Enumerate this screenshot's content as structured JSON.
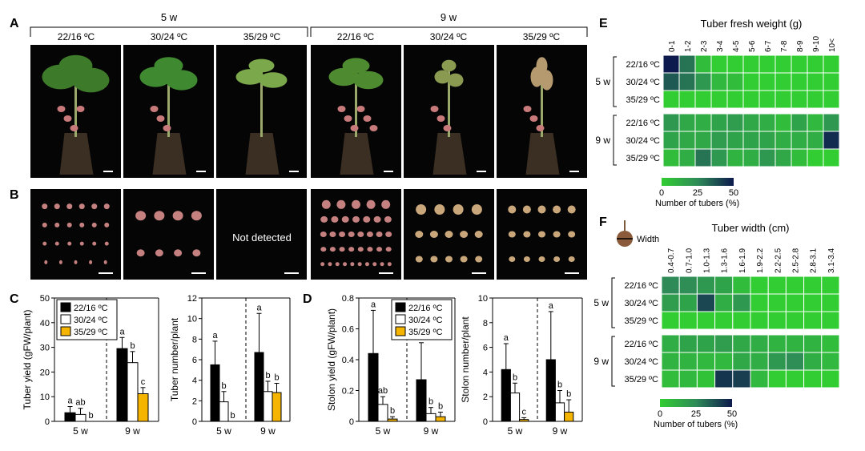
{
  "panel_labels": {
    "A": "A",
    "B": "B",
    "C": "C",
    "D": "D",
    "E": "E",
    "F": "F"
  },
  "groups": [
    {
      "label": "5 w",
      "temps": [
        "22/16 ºC",
        "30/24 ºC",
        "35/29 ºC"
      ]
    },
    {
      "label": "9 w",
      "temps": [
        "22/16 ºC",
        "30/24 ºC",
        "35/29 ºC"
      ]
    }
  ],
  "panel_b": {
    "not_detected": "Not detected"
  },
  "colors": {
    "black_bar": "#000000",
    "white_bar": "#ffffff",
    "yellow_bar": "#f5b400",
    "photo_bg": "#050505",
    "heat_low": "#32cd32",
    "heat_mid": "#2e8b57",
    "heat_high": "#0d1a4d"
  },
  "legend_temps": [
    "22/16 ºC",
    "30/24 ºC",
    "35/29 ºC"
  ],
  "chart_data": [
    {
      "id": "C-yield",
      "type": "bar",
      "ylabel": "Tuber yield (gFW/plant)",
      "ylim": [
        0,
        50
      ],
      "yticks": [
        0,
        10,
        20,
        30,
        40,
        50
      ],
      "categories": [
        "5 w",
        "9 w"
      ],
      "series": [
        {
          "name": "22/16 ºC",
          "values": [
            3.5,
            29.5
          ],
          "err": [
            2.5,
            4.5
          ],
          "letters": [
            "a",
            "a"
          ]
        },
        {
          "name": "30/24 ºC",
          "values": [
            2.8,
            23.8
          ],
          "err": [
            2.5,
            4.5
          ],
          "letters": [
            "ab",
            "b"
          ]
        },
        {
          "name": "35/29 ºC",
          "values": [
            0,
            11.2
          ],
          "err": [
            0,
            2.5
          ],
          "letters": [
            "b",
            "c"
          ]
        }
      ]
    },
    {
      "id": "C-number",
      "type": "bar",
      "ylabel": "Tuber number/plant",
      "ylim": [
        0,
        12
      ],
      "yticks": [
        0,
        2,
        4,
        6,
        8,
        10,
        12
      ],
      "categories": [
        "5 w",
        "9 w"
      ],
      "series": [
        {
          "name": "22/16 ºC",
          "values": [
            5.5,
            6.7
          ],
          "err": [
            2.3,
            3.8
          ],
          "letters": [
            "a",
            "a"
          ]
        },
        {
          "name": "30/24 ºC",
          "values": [
            1.9,
            2.9
          ],
          "err": [
            1.0,
            1.0
          ],
          "letters": [
            "b",
            "b"
          ]
        },
        {
          "name": "35/29 ºC",
          "values": [
            0,
            2.8
          ],
          "err": [
            0,
            0.9
          ],
          "letters": [
            "b",
            "b"
          ]
        }
      ]
    },
    {
      "id": "D-yield",
      "type": "bar",
      "ylabel": "Stolon yield (gFW/plant)",
      "ylim": [
        0,
        0.8
      ],
      "yticks": [
        0,
        0.2,
        0.4,
        0.6,
        0.8
      ],
      "categories": [
        "5 w",
        "9 w"
      ],
      "series": [
        {
          "name": "22/16 ºC",
          "values": [
            0.44,
            0.27
          ],
          "err": [
            0.28,
            0.24
          ],
          "letters": [
            "a",
            "a"
          ]
        },
        {
          "name": "30/24 ºC",
          "values": [
            0.11,
            0.05
          ],
          "err": [
            0.05,
            0.04
          ],
          "letters": [
            "ab",
            "b"
          ]
        },
        {
          "name": "35/29 ºC",
          "values": [
            0.015,
            0.03
          ],
          "err": [
            0.015,
            0.03
          ],
          "letters": [
            "b",
            "b"
          ]
        }
      ]
    },
    {
      "id": "D-number",
      "type": "bar",
      "ylabel": "Stolon number/plant",
      "ylim": [
        0,
        10
      ],
      "yticks": [
        0,
        2,
        4,
        6,
        8,
        10
      ],
      "categories": [
        "5 w",
        "9 w"
      ],
      "series": [
        {
          "name": "22/16 ºC",
          "values": [
            4.2,
            5.0
          ],
          "err": [
            2.1,
            3.9
          ],
          "letters": [
            "a",
            "a"
          ]
        },
        {
          "name": "30/24 ºC",
          "values": [
            2.3,
            1.5
          ],
          "err": [
            0.8,
            1.0
          ],
          "letters": [
            "b",
            "b"
          ]
        },
        {
          "name": "35/29 ºC",
          "values": [
            0.15,
            0.75
          ],
          "err": [
            0.15,
            1.0
          ],
          "letters": [
            "c",
            "b"
          ]
        }
      ]
    },
    {
      "id": "E",
      "type": "heatmap",
      "title": "Tuber fresh weight (g)",
      "columns": [
        "0-1",
        "1-2",
        "2-3",
        "3-4",
        "4-5",
        "5-6",
        "6-7",
        "7-8",
        "8-9",
        "9-10",
        "10<"
      ],
      "rows": [
        "22/16 ºC",
        "30/24 ºC",
        "35/29 ºC",
        "22/16 ºC",
        "30/24 ºC",
        "35/29 ºC"
      ],
      "row_groups": [
        "5 w",
        "9 w"
      ],
      "values": [
        [
          50,
          30,
          6,
          0,
          0,
          0,
          0,
          0,
          0,
          0,
          0
        ],
        [
          36,
          30,
          20,
          8,
          6,
          0,
          0,
          0,
          0,
          0,
          0
        ],
        [
          0,
          0,
          0,
          0,
          0,
          0,
          0,
          0,
          0,
          0,
          0
        ],
        [
          20,
          14,
          12,
          16,
          18,
          14,
          12,
          6,
          16,
          8,
          20
        ],
        [
          16,
          14,
          14,
          18,
          16,
          16,
          16,
          12,
          12,
          12,
          46
        ],
        [
          6,
          12,
          30,
          20,
          10,
          12,
          20,
          14,
          6,
          0,
          0
        ]
      ],
      "legend": {
        "ticks": [
          0,
          25,
          50
        ],
        "label": "Number of tubers (%)"
      }
    },
    {
      "id": "F",
      "type": "heatmap",
      "title": "Tuber width (cm)",
      "icon_label": "Width",
      "columns": [
        "0.4-0.7",
        "0.7-1.0",
        "1.0-1.3",
        "1.3-1.6",
        "1.6-1.9",
        "1.9-2.2",
        "2.2-2.5",
        "2.5-2.8",
        "2.8-3.1",
        "3.1-3.4"
      ],
      "rows": [
        "22/16 ºC",
        "30/24 ºC",
        "35/29 ºC",
        "22/16 ºC",
        "30/24 ºC",
        "35/29 ºC"
      ],
      "row_groups": [
        "5 w",
        "9 w"
      ],
      "values": [
        [
          25,
          24,
          20,
          16,
          6,
          0,
          0,
          0,
          0,
          0
        ],
        [
          18,
          16,
          40,
          12,
          20,
          0,
          0,
          0,
          0,
          0
        ],
        [
          0,
          0,
          0,
          0,
          0,
          0,
          0,
          0,
          0,
          0
        ],
        [
          12,
          16,
          16,
          18,
          14,
          12,
          10,
          10,
          10,
          6
        ],
        [
          10,
          10,
          8,
          8,
          14,
          12,
          20,
          24,
          12,
          8
        ],
        [
          6,
          8,
          4,
          44,
          42,
          8,
          0,
          0,
          0,
          0
        ]
      ],
      "legend": {
        "ticks": [
          0,
          25,
          50
        ],
        "label": "Number of tubers (%)"
      }
    }
  ]
}
